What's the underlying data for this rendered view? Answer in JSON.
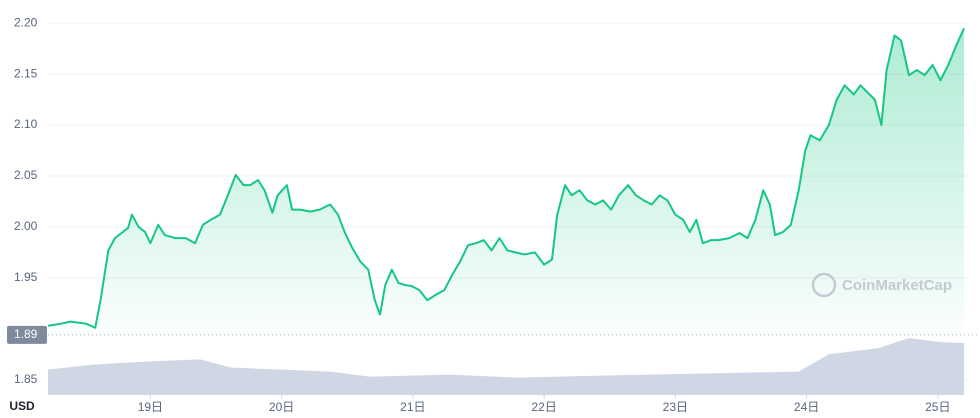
{
  "chart_data": {
    "type": "line",
    "unit_label": "USD",
    "watermark": "CoinMarketCap",
    "xlim": [
      18.22,
      25.23
    ],
    "ylim": [
      1.835,
      2.21
    ],
    "grid": true,
    "xticks": [
      {
        "value": 19,
        "label": "19日"
      },
      {
        "value": 20,
        "label": "20日"
      },
      {
        "value": 21,
        "label": "21日"
      },
      {
        "value": 22,
        "label": "22日"
      },
      {
        "value": 23,
        "label": "23日"
      },
      {
        "value": 24,
        "label": "24日"
      },
      {
        "value": 25,
        "label": "25日"
      }
    ],
    "yticks": [
      1.85,
      1.95,
      {
        "value": 2.0,
        "label": "2.00"
      },
      2.05,
      {
        "value": 2.1,
        "label": "2.10"
      },
      2.15,
      {
        "value": 2.2,
        "label": "2.20"
      }
    ],
    "reference": {
      "value": 1.894,
      "label": "1.89"
    },
    "price": {
      "color": "#16c784",
      "x": [
        18.22,
        18.32,
        18.39,
        18.51,
        18.58,
        18.62,
        18.68,
        18.73,
        18.79,
        18.83,
        18.86,
        18.91,
        18.96,
        19.0,
        19.06,
        19.11,
        19.19,
        19.27,
        19.34,
        19.4,
        19.46,
        19.53,
        19.59,
        19.65,
        19.71,
        19.76,
        19.82,
        19.87,
        19.93,
        19.97,
        20.04,
        20.08,
        20.14,
        20.22,
        20.29,
        20.37,
        20.43,
        20.48,
        20.54,
        20.6,
        20.66,
        20.71,
        20.75,
        20.79,
        20.84,
        20.89,
        20.94,
        20.99,
        21.05,
        21.11,
        21.17,
        21.24,
        21.3,
        21.36,
        21.42,
        21.48,
        21.54,
        21.6,
        21.66,
        21.72,
        21.78,
        21.85,
        21.93,
        22.0,
        22.06,
        22.1,
        22.16,
        22.21,
        22.27,
        22.33,
        22.39,
        22.45,
        22.51,
        22.57,
        22.64,
        22.7,
        22.76,
        22.82,
        22.88,
        22.94,
        23.0,
        23.06,
        23.11,
        23.16,
        23.21,
        23.27,
        23.33,
        23.41,
        23.49,
        23.55,
        23.61,
        23.67,
        23.72,
        23.76,
        23.82,
        23.88,
        23.94,
        23.99,
        24.03,
        24.1,
        24.17,
        24.23,
        24.29,
        24.36,
        24.41,
        24.48,
        24.52,
        24.57,
        24.61,
        24.67,
        24.72,
        24.78,
        24.84,
        24.9,
        24.96,
        25.02,
        25.08,
        25.14,
        25.2
      ],
      "values": [
        1.903,
        1.905,
        1.907,
        1.905,
        1.901,
        1.928,
        1.977,
        1.989,
        1.995,
        1.999,
        2.012,
        2.0,
        1.995,
        1.984,
        2.002,
        1.992,
        1.989,
        1.989,
        1.984,
        2.002,
        2.007,
        2.012,
        2.031,
        2.051,
        2.041,
        2.041,
        2.046,
        2.036,
        2.014,
        2.031,
        2.041,
        2.017,
        2.017,
        2.015,
        2.017,
        2.022,
        2.012,
        1.995,
        1.979,
        1.966,
        1.958,
        1.928,
        1.914,
        1.943,
        1.958,
        1.945,
        1.943,
        1.942,
        1.938,
        1.928,
        1.933,
        1.938,
        1.953,
        1.966,
        1.982,
        1.984,
        1.987,
        1.977,
        1.989,
        1.977,
        1.975,
        1.973,
        1.975,
        1.963,
        1.968,
        2.012,
        2.041,
        2.031,
        2.036,
        2.026,
        2.022,
        2.026,
        2.017,
        2.031,
        2.041,
        2.031,
        2.026,
        2.022,
        2.031,
        2.026,
        2.012,
        2.007,
        1.995,
        2.007,
        1.984,
        1.987,
        1.987,
        1.989,
        1.994,
        1.989,
        2.007,
        2.036,
        2.022,
        1.992,
        1.995,
        2.002,
        2.036,
        2.075,
        2.09,
        2.085,
        2.1,
        2.125,
        2.139,
        2.13,
        2.139,
        2.13,
        2.125,
        2.1,
        2.154,
        2.188,
        2.183,
        2.149,
        2.154,
        2.149,
        2.159,
        2.144,
        2.159,
        2.178,
        2.195
      ]
    },
    "volume": {
      "color": "#cfd6e4",
      "x": [
        18.22,
        18.58,
        19.0,
        19.38,
        19.61,
        20.37,
        20.67,
        21.28,
        21.81,
        22.42,
        23.18,
        23.94,
        24.17,
        24.55,
        24.78,
        25.01,
        25.2
      ],
      "values": [
        1.86,
        1.865,
        1.868,
        1.87,
        1.862,
        1.858,
        1.853,
        1.855,
        1.852,
        1.854,
        1.856,
        1.858,
        1.875,
        1.881,
        1.891,
        1.887,
        1.886
      ]
    }
  }
}
